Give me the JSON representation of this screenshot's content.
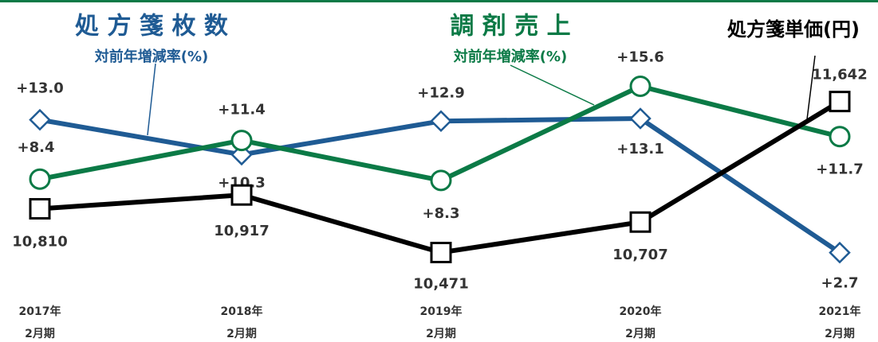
{
  "chart_data": {
    "type": "line",
    "categories": [
      [
        "2017年",
        "2月期"
      ],
      [
        "2018年",
        "2月期"
      ],
      [
        "2019年",
        "2月期"
      ],
      [
        "2020年",
        "2月期"
      ],
      [
        "2021年",
        "2月期"
      ]
    ],
    "ylim": [
      2,
      16
    ],
    "y2lim": [
      10400,
      11800
    ],
    "series": [
      {
        "name": "処 方 箋 枚 数",
        "subtitle": "対前年増減率(%)",
        "color": "#1f5b94",
        "marker": "diamond",
        "values": [
          13.0,
          10.3,
          12.9,
          13.1,
          2.7
        ],
        "value_labels": [
          "+13.0",
          "+10.3",
          "+12.9",
          "+13.1",
          "+2.7"
        ]
      },
      {
        "name": "調 剤 売 上",
        "subtitle": "対前年増減率(%)",
        "color": "#0b7a46",
        "marker": "circle",
        "values": [
          8.4,
          11.4,
          8.3,
          15.6,
          11.7
        ],
        "value_labels": [
          "+8.4",
          "+11.4",
          "+8.3",
          "+15.6",
          "+11.7"
        ]
      },
      {
        "name": "処方箋単価(円)",
        "color": "#000000",
        "marker": "square",
        "axis": "y2",
        "values": [
          10810,
          10917,
          10471,
          10707,
          11642
        ],
        "value_labels": [
          "10,810",
          "10,917",
          "10,471",
          "10,707",
          "11,642"
        ]
      }
    ]
  }
}
